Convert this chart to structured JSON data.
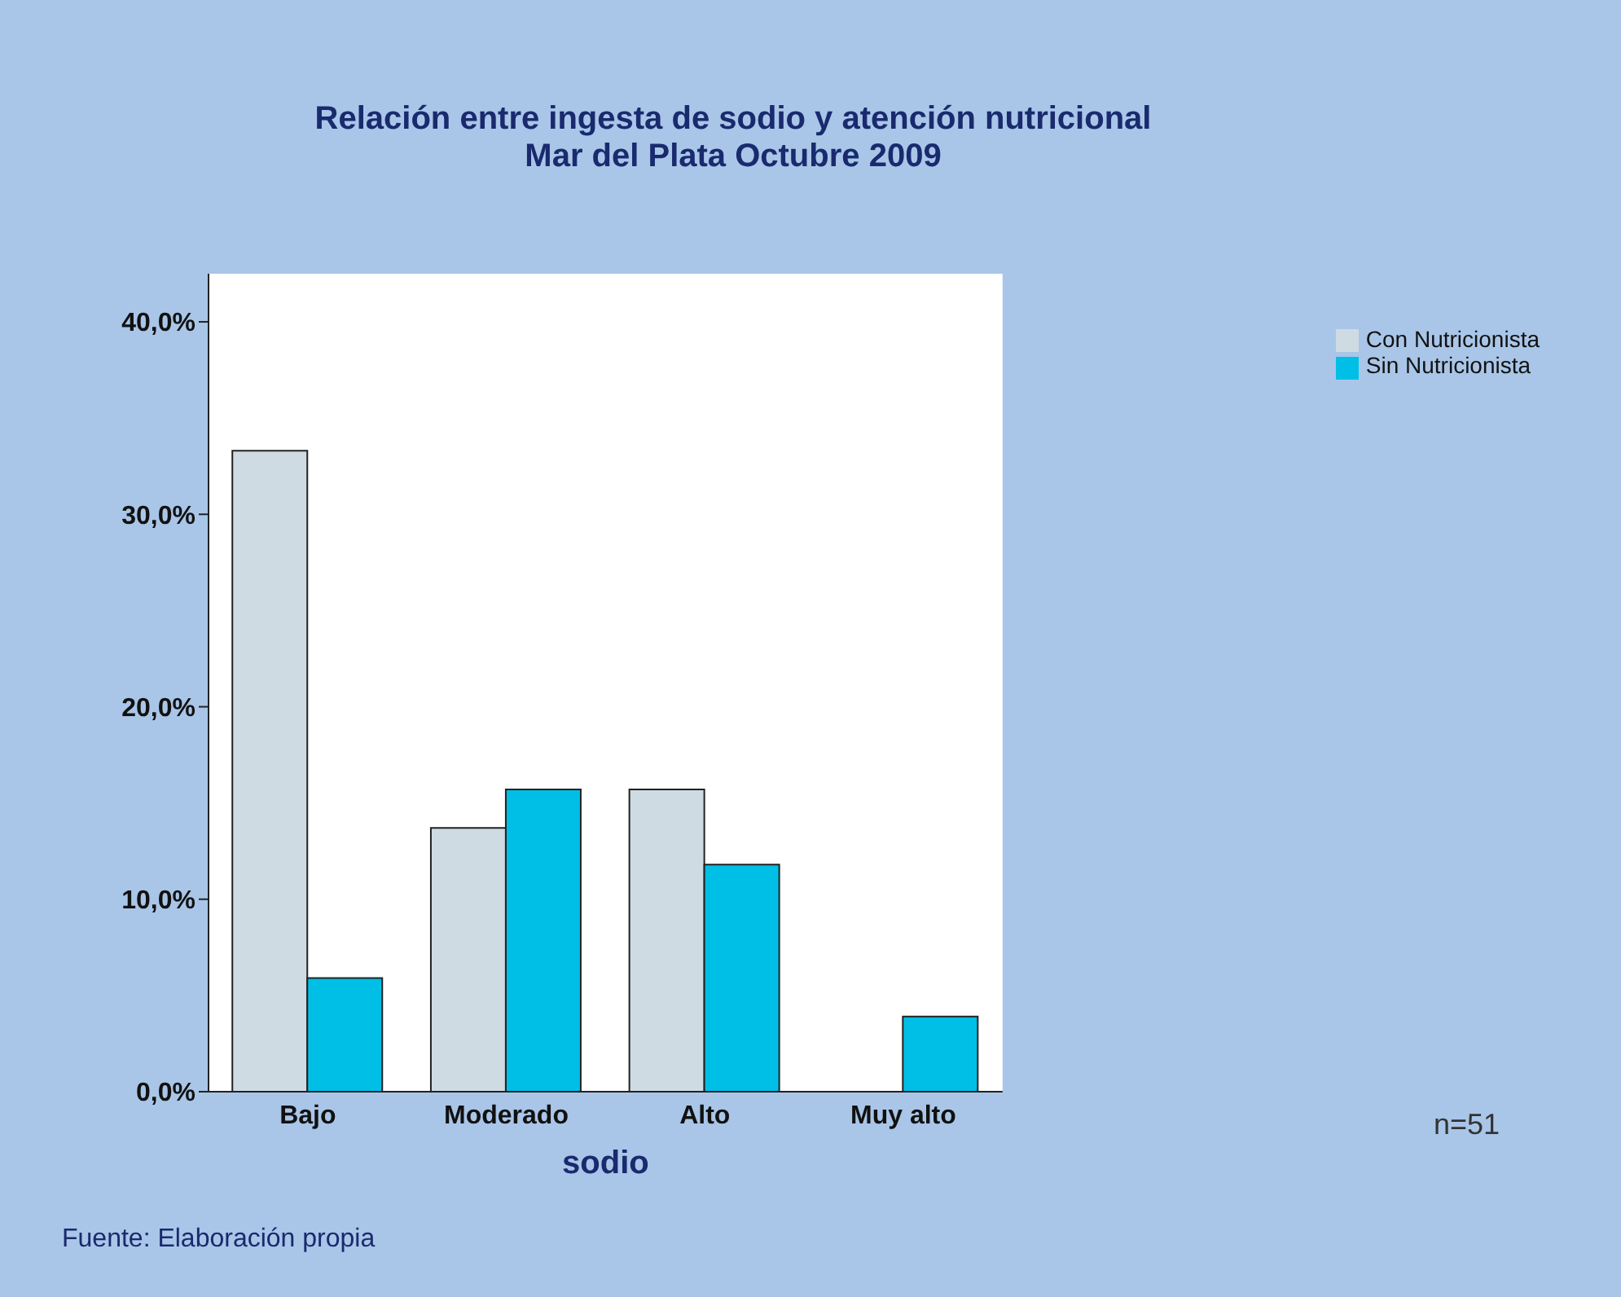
{
  "chart_data": {
    "type": "bar",
    "title": "Relación entre ingesta de sodio y atención nutricional",
    "subtitle": "Mar del Plata Octubre 2009",
    "xlabel": "sodio",
    "categories": [
      "Bajo",
      "Moderado",
      "Alto",
      "Muy alto"
    ],
    "series": [
      {
        "name": "Con Nutricionista",
        "color": "#cfdbe3",
        "values": [
          33.3,
          13.7,
          15.7,
          0
        ]
      },
      {
        "name": "Sin Nutricionista",
        "color": "#00bfe6",
        "values": [
          5.9,
          15.7,
          11.8,
          3.9
        ]
      }
    ],
    "ylim": [
      0,
      42.5
    ],
    "yticks": [
      {
        "value": 0,
        "label": "0,0%"
      },
      {
        "value": 10,
        "label": "10,0%"
      },
      {
        "value": 20,
        "label": "20,0%"
      },
      {
        "value": 30,
        "label": "30,0%"
      },
      {
        "value": 40,
        "label": "40,0%"
      }
    ],
    "legend": "top right",
    "annotations": [
      "n=51",
      "Fuente: Elaboración propia"
    ]
  }
}
